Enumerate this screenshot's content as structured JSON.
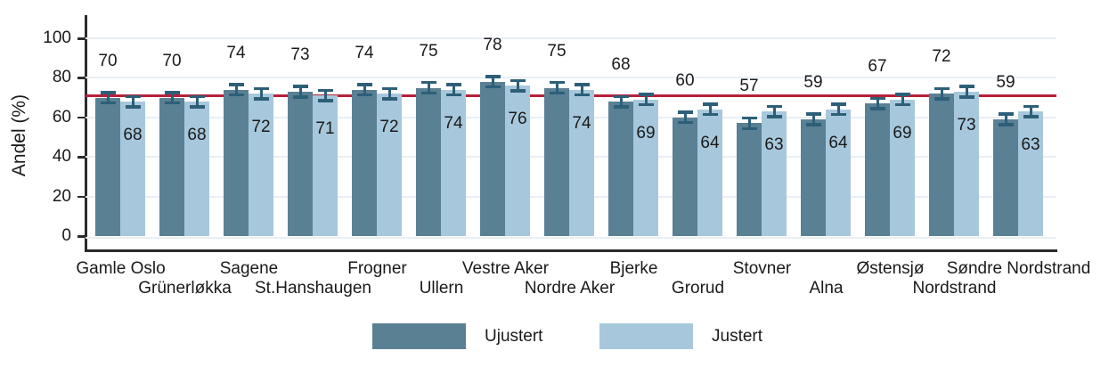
{
  "chart_data": {
    "type": "bar",
    "title": "",
    "xlabel": "",
    "ylabel": "Andel (%)",
    "ylim": [
      0,
      100
    ],
    "yticks": [
      0,
      20,
      40,
      60,
      80,
      100
    ],
    "grid": true,
    "legend_position": "bottom",
    "categories": [
      "Gamle Oslo",
      "Grünerløkka",
      "Sagene",
      "St.Hanshaugen",
      "Frogner",
      "Ullern",
      "Vestre Aker",
      "Nordre Aker",
      "Bjerke",
      "Grorud",
      "Stovner",
      "Alna",
      "Østensjø",
      "Nordstrand",
      "Søndre Nordstrand"
    ],
    "series": [
      {
        "name": "Ujustert",
        "color": "#5a8094",
        "values": [
          70,
          70,
          74,
          73,
          74,
          75,
          78,
          75,
          68,
          60,
          57,
          59,
          67,
          72,
          59
        ]
      },
      {
        "name": "Justert",
        "color": "#a7c8dc",
        "values": [
          68,
          68,
          72,
          71,
          72,
          74,
          76,
          74,
          69,
          64,
          63,
          64,
          69,
          73,
          63
        ]
      }
    ],
    "error_bars": {
      "half_width": 3.4,
      "color": "#2d5f78"
    },
    "reference_line": {
      "value": 71,
      "color": "#b82039"
    }
  },
  "style_colors": {
    "axis": "#2b2b2b",
    "gridline": "#e9eff5",
    "text": "#1a1a1a",
    "background": "#ffffff"
  }
}
